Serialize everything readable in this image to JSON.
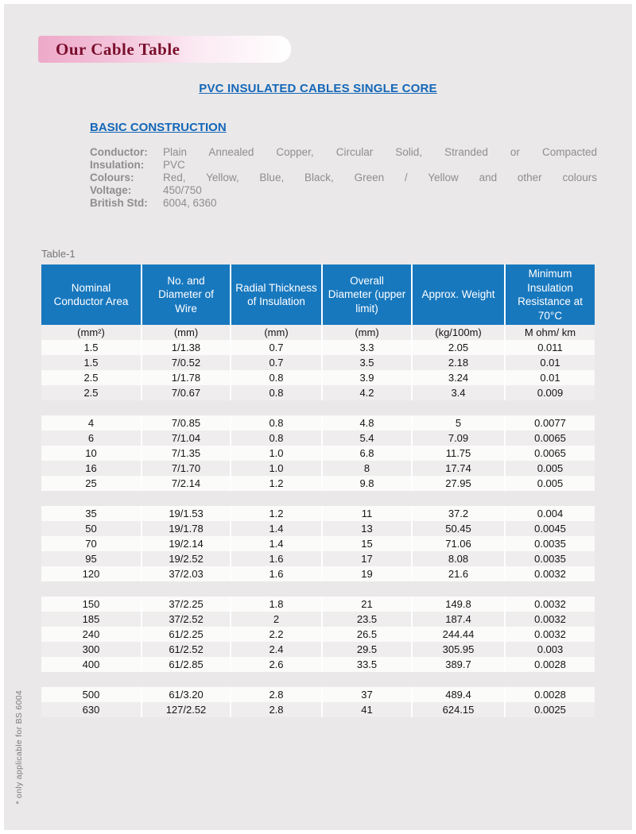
{
  "banner": {
    "title": "Our Cable Table"
  },
  "titles": {
    "main": "PVC INSULATED CABLES SINGLE CORE",
    "section": "BASIC CONSTRUCTION"
  },
  "specs": [
    {
      "label": "Conductor:",
      "value": "Plain Annealed Copper, Circular Solid, Stranded or Compacted",
      "justify": true
    },
    {
      "label": "Insulation:",
      "value": "PVC",
      "justify": false
    },
    {
      "label": "Colours:",
      "value": "Red, Yellow, Blue, Black, Green / Yellow and other colours",
      "justify": true
    },
    {
      "label": "Voltage:",
      "value": "450/750",
      "justify": false
    },
    {
      "label": "British Std:",
      "value": "6004, 6360",
      "justify": false
    }
  ],
  "table": {
    "label": "Table-1",
    "columns": [
      "Nominal Conductor Area",
      "No. and Diameter of Wire",
      "Radial Thickness of Insulation",
      "Overall Diameter (upper limit)",
      "Approx. Weight",
      "Minimum Insulation Resistance at 70°C"
    ],
    "units": [
      "(mm²)",
      "(mm)",
      "(mm)",
      "(mm)",
      "(kg/100m)",
      "M ohm/ km"
    ],
    "groups": [
      [
        [
          "1.5",
          "1/1.38",
          "0.7",
          "3.3",
          "2.05",
          "0.011"
        ],
        [
          "1.5",
          "7/0.52",
          "0.7",
          "3.5",
          "2.18",
          "0.01"
        ],
        [
          "2.5",
          "1/1.78",
          "0.8",
          "3.9",
          "3.24",
          "0.01"
        ],
        [
          "2.5",
          "7/0.67",
          "0.8",
          "4.2",
          "3.4",
          "0.009"
        ]
      ],
      [
        [
          "4",
          "7/0.85",
          "0.8",
          "4.8",
          "5",
          "0.0077"
        ],
        [
          "6",
          "7/1.04",
          "0.8",
          "5.4",
          "7.09",
          "0.0065"
        ],
        [
          "10",
          "7/1.35",
          "1.0",
          "6.8",
          "11.75",
          "0.0065"
        ],
        [
          "16",
          "7/1.70",
          "1.0",
          "8",
          "17.74",
          "0.005"
        ],
        [
          "25",
          "7/2.14",
          "1.2",
          "9.8",
          "27.95",
          "0.005"
        ]
      ],
      [
        [
          "35",
          "19/1.53",
          "1.2",
          "11",
          "37.2",
          "0.004"
        ],
        [
          "50",
          "19/1.78",
          "1.4",
          "13",
          "50.45",
          "0.0045"
        ],
        [
          "70",
          "19/2.14",
          "1.4",
          "15",
          "71.06",
          "0.0035"
        ],
        [
          "95",
          "19/2.52",
          "1.6",
          "17",
          "8.08",
          "0.0035"
        ],
        [
          "120",
          "37/2.03",
          "1.6",
          "19",
          "21.6",
          "0.0032"
        ]
      ],
      [
        [
          "150",
          "37/2.25",
          "1.8",
          "21",
          "149.8",
          "0.0032"
        ],
        [
          "185",
          "37/2.52",
          "2",
          "23.5",
          "187.4",
          "0.0032"
        ],
        [
          "240",
          "61/2.25",
          "2.2",
          "26.5",
          "244.44",
          "0.0032"
        ],
        [
          "300",
          "61/2.52",
          "2.4",
          "29.5",
          "305.95",
          "0.003"
        ],
        [
          "400",
          "61/2.85",
          "2.6",
          "33.5",
          "389.7",
          "0.0028"
        ]
      ],
      [
        [
          "500",
          "61/3.20",
          "2.8",
          "37",
          "489.4",
          "0.0028"
        ],
        [
          "630",
          "127/2.52",
          "2.8",
          "41",
          "624.15",
          "0.0025"
        ]
      ]
    ]
  },
  "footnote": "* only applicable for BS 6004",
  "colors": {
    "header_blue": "#1878be",
    "title_blue": "#1467b8",
    "banner_maroon": "#7a0e2c",
    "page_bg": "#eae8e8",
    "row_light": "#fbfbfa",
    "row_shaded": "#efedee"
  }
}
